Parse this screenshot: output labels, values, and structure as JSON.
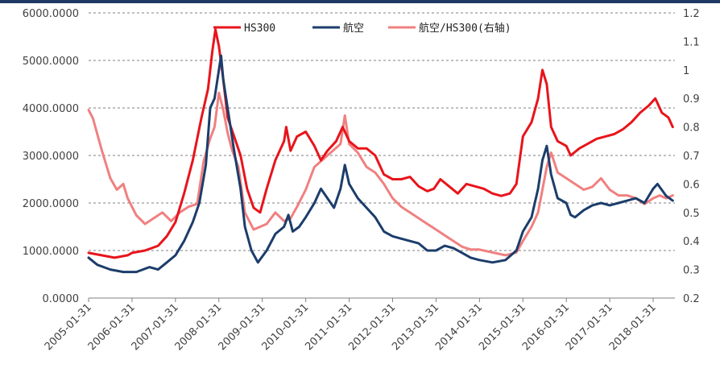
{
  "chart_data": {
    "type": "line",
    "title": "",
    "xlabel": "",
    "ylabel_left": "",
    "ylabel_right": "",
    "x_tick_labels": [
      "2005-01-31",
      "2006-01-31",
      "2007-01-31",
      "2008-01-31",
      "2009-01-31",
      "2010-01-31",
      "2011-01-31",
      "2012-01-31",
      "2013-01-31",
      "2014-01-31",
      "2015-01-31",
      "2016-01-31",
      "2017-01-31",
      "2018-01-31"
    ],
    "x_range": [
      2005.0,
      2018.5
    ],
    "y_left": {
      "range": [
        0,
        6000
      ],
      "ticks": [
        "0.0000",
        "1000.0000",
        "2000.0000",
        "3000.0000",
        "4000.0000",
        "5000.0000",
        "6000.0000"
      ]
    },
    "y_right": {
      "range": [
        0.2,
        1.2
      ],
      "ticks": [
        "0.2",
        "0.3",
        "0.4",
        "0.5",
        "0.6",
        "0.7",
        "0.8",
        "0.9",
        "1",
        "1.1",
        "1.2"
      ]
    },
    "grid": true,
    "legend_position": "top",
    "series": [
      {
        "name": "HS300",
        "axis": "left",
        "color": "#e8141b",
        "points": [
          [
            2005.0,
            950
          ],
          [
            2005.3,
            900
          ],
          [
            2005.6,
            850
          ],
          [
            2005.9,
            900
          ],
          [
            2006.0,
            950
          ],
          [
            2006.3,
            1000
          ],
          [
            2006.6,
            1100
          ],
          [
            2006.8,
            1300
          ],
          [
            2007.0,
            1600
          ],
          [
            2007.2,
            2200
          ],
          [
            2007.4,
            2900
          ],
          [
            2007.6,
            3800
          ],
          [
            2007.75,
            4400
          ],
          [
            2007.85,
            5200
          ],
          [
            2007.92,
            5650
          ],
          [
            2008.0,
            5300
          ],
          [
            2008.1,
            4600
          ],
          [
            2008.2,
            3800
          ],
          [
            2008.35,
            3400
          ],
          [
            2008.5,
            3000
          ],
          [
            2008.65,
            2300
          ],
          [
            2008.8,
            1900
          ],
          [
            2008.95,
            1800
          ],
          [
            2009.1,
            2300
          ],
          [
            2009.3,
            2900
          ],
          [
            2009.5,
            3300
          ],
          [
            2009.55,
            3600
          ],
          [
            2009.65,
            3100
          ],
          [
            2009.8,
            3400
          ],
          [
            2010.0,
            3500
          ],
          [
            2010.2,
            3200
          ],
          [
            2010.35,
            2900
          ],
          [
            2010.5,
            3100
          ],
          [
            2010.7,
            3300
          ],
          [
            2010.85,
            3600
          ],
          [
            2011.0,
            3300
          ],
          [
            2011.2,
            3150
          ],
          [
            2011.4,
            3150
          ],
          [
            2011.6,
            3000
          ],
          [
            2011.8,
            2600
          ],
          [
            2012.0,
            2500
          ],
          [
            2012.2,
            2500
          ],
          [
            2012.4,
            2550
          ],
          [
            2012.6,
            2350
          ],
          [
            2012.8,
            2250
          ],
          [
            2012.95,
            2300
          ],
          [
            2013.1,
            2500
          ],
          [
            2013.3,
            2350
          ],
          [
            2013.5,
            2200
          ],
          [
            2013.7,
            2400
          ],
          [
            2013.9,
            2350
          ],
          [
            2014.1,
            2300
          ],
          [
            2014.3,
            2200
          ],
          [
            2014.5,
            2150
          ],
          [
            2014.7,
            2200
          ],
          [
            2014.85,
            2400
          ],
          [
            2015.0,
            3400
          ],
          [
            2015.2,
            3700
          ],
          [
            2015.35,
            4200
          ],
          [
            2015.45,
            4800
          ],
          [
            2015.55,
            4500
          ],
          [
            2015.65,
            3600
          ],
          [
            2015.8,
            3300
          ],
          [
            2016.0,
            3200
          ],
          [
            2016.1,
            3000
          ],
          [
            2016.3,
            3150
          ],
          [
            2016.5,
            3250
          ],
          [
            2016.7,
            3350
          ],
          [
            2016.9,
            3400
          ],
          [
            2017.1,
            3450
          ],
          [
            2017.3,
            3550
          ],
          [
            2017.5,
            3700
          ],
          [
            2017.7,
            3900
          ],
          [
            2017.9,
            4050
          ],
          [
            2018.05,
            4200
          ],
          [
            2018.2,
            3900
          ],
          [
            2018.35,
            3800
          ],
          [
            2018.45,
            3600
          ]
        ]
      },
      {
        "name": "航空",
        "axis": "left",
        "color": "#1c3d6b",
        "points": [
          [
            2005.0,
            850
          ],
          [
            2005.2,
            700
          ],
          [
            2005.5,
            600
          ],
          [
            2005.8,
            550
          ],
          [
            2006.1,
            550
          ],
          [
            2006.4,
            650
          ],
          [
            2006.6,
            600
          ],
          [
            2006.8,
            750
          ],
          [
            2007.0,
            900
          ],
          [
            2007.2,
            1200
          ],
          [
            2007.4,
            1600
          ],
          [
            2007.55,
            2000
          ],
          [
            2007.7,
            2800
          ],
          [
            2007.8,
            4000
          ],
          [
            2007.9,
            4200
          ],
          [
            2008.0,
            4800
          ],
          [
            2008.05,
            5100
          ],
          [
            2008.1,
            4600
          ],
          [
            2008.2,
            4000
          ],
          [
            2008.35,
            3100
          ],
          [
            2008.5,
            2300
          ],
          [
            2008.6,
            1500
          ],
          [
            2008.75,
            1000
          ],
          [
            2008.9,
            750
          ],
          [
            2009.1,
            1000
          ],
          [
            2009.3,
            1350
          ],
          [
            2009.5,
            1500
          ],
          [
            2009.6,
            1750
          ],
          [
            2009.7,
            1400
          ],
          [
            2009.85,
            1500
          ],
          [
            2010.0,
            1700
          ],
          [
            2010.2,
            2000
          ],
          [
            2010.35,
            2300
          ],
          [
            2010.5,
            2100
          ],
          [
            2010.65,
            1900
          ],
          [
            2010.8,
            2300
          ],
          [
            2010.9,
            2800
          ],
          [
            2011.0,
            2400
          ],
          [
            2011.2,
            2100
          ],
          [
            2011.4,
            1900
          ],
          [
            2011.6,
            1700
          ],
          [
            2011.8,
            1400
          ],
          [
            2012.0,
            1300
          ],
          [
            2012.2,
            1250
          ],
          [
            2012.4,
            1200
          ],
          [
            2012.6,
            1150
          ],
          [
            2012.8,
            1000
          ],
          [
            2013.0,
            1000
          ],
          [
            2013.2,
            1100
          ],
          [
            2013.4,
            1050
          ],
          [
            2013.6,
            950
          ],
          [
            2013.8,
            850
          ],
          [
            2014.0,
            800
          ],
          [
            2014.3,
            750
          ],
          [
            2014.6,
            800
          ],
          [
            2014.85,
            1000
          ],
          [
            2015.0,
            1400
          ],
          [
            2015.2,
            1700
          ],
          [
            2015.35,
            2300
          ],
          [
            2015.45,
            2900
          ],
          [
            2015.55,
            3200
          ],
          [
            2015.65,
            2600
          ],
          [
            2015.8,
            2100
          ],
          [
            2016.0,
            2000
          ],
          [
            2016.1,
            1750
          ],
          [
            2016.2,
            1700
          ],
          [
            2016.4,
            1850
          ],
          [
            2016.6,
            1950
          ],
          [
            2016.8,
            2000
          ],
          [
            2017.0,
            1950
          ],
          [
            2017.2,
            2000
          ],
          [
            2017.4,
            2050
          ],
          [
            2017.6,
            2100
          ],
          [
            2017.8,
            2000
          ],
          [
            2018.0,
            2300
          ],
          [
            2018.1,
            2400
          ],
          [
            2018.3,
            2150
          ],
          [
            2018.45,
            2050
          ]
        ]
      },
      {
        "name": "航空/HS300(右轴)",
        "axis": "right",
        "color": "#f08080",
        "points": [
          [
            2005.0,
            0.86
          ],
          [
            2005.1,
            0.83
          ],
          [
            2005.3,
            0.72
          ],
          [
            2005.5,
            0.62
          ],
          [
            2005.65,
            0.58
          ],
          [
            2005.8,
            0.6
          ],
          [
            2005.9,
            0.55
          ],
          [
            2006.1,
            0.49
          ],
          [
            2006.3,
            0.46
          ],
          [
            2006.5,
            0.48
          ],
          [
            2006.7,
            0.5
          ],
          [
            2006.9,
            0.47
          ],
          [
            2007.1,
            0.5
          ],
          [
            2007.3,
            0.52
          ],
          [
            2007.5,
            0.53
          ],
          [
            2007.65,
            0.68
          ],
          [
            2007.8,
            0.76
          ],
          [
            2007.9,
            0.8
          ],
          [
            2008.0,
            0.92
          ],
          [
            2008.1,
            0.86
          ],
          [
            2008.2,
            0.78
          ],
          [
            2008.3,
            0.72
          ],
          [
            2008.45,
            0.66
          ],
          [
            2008.6,
            0.5
          ],
          [
            2008.8,
            0.44
          ],
          [
            2008.95,
            0.45
          ],
          [
            2009.1,
            0.46
          ],
          [
            2009.3,
            0.5
          ],
          [
            2009.5,
            0.47
          ],
          [
            2009.65,
            0.48
          ],
          [
            2009.8,
            0.52
          ],
          [
            2010.0,
            0.58
          ],
          [
            2010.2,
            0.66
          ],
          [
            2010.35,
            0.68
          ],
          [
            2010.5,
            0.7
          ],
          [
            2010.65,
            0.72
          ],
          [
            2010.8,
            0.74
          ],
          [
            2010.9,
            0.84
          ],
          [
            2011.0,
            0.74
          ],
          [
            2011.2,
            0.71
          ],
          [
            2011.4,
            0.66
          ],
          [
            2011.6,
            0.64
          ],
          [
            2011.8,
            0.6
          ],
          [
            2012.0,
            0.55
          ],
          [
            2012.2,
            0.52
          ],
          [
            2012.4,
            0.5
          ],
          [
            2012.6,
            0.48
          ],
          [
            2012.8,
            0.46
          ],
          [
            2013.0,
            0.44
          ],
          [
            2013.2,
            0.42
          ],
          [
            2013.4,
            0.4
          ],
          [
            2013.6,
            0.38
          ],
          [
            2013.8,
            0.37
          ],
          [
            2014.0,
            0.37
          ],
          [
            2014.3,
            0.36
          ],
          [
            2014.6,
            0.35
          ],
          [
            2014.85,
            0.36
          ],
          [
            2015.0,
            0.4
          ],
          [
            2015.2,
            0.45
          ],
          [
            2015.35,
            0.5
          ],
          [
            2015.45,
            0.58
          ],
          [
            2015.55,
            0.66
          ],
          [
            2015.65,
            0.71
          ],
          [
            2015.8,
            0.64
          ],
          [
            2016.0,
            0.62
          ],
          [
            2016.2,
            0.6
          ],
          [
            2016.4,
            0.58
          ],
          [
            2016.6,
            0.59
          ],
          [
            2016.8,
            0.62
          ],
          [
            2017.0,
            0.58
          ],
          [
            2017.2,
            0.56
          ],
          [
            2017.4,
            0.56
          ],
          [
            2017.6,
            0.55
          ],
          [
            2017.8,
            0.53
          ],
          [
            2018.0,
            0.55
          ],
          [
            2018.15,
            0.56
          ],
          [
            2018.3,
            0.55
          ],
          [
            2018.45,
            0.56
          ]
        ]
      }
    ],
    "legend": [
      {
        "label": "HS300",
        "color": "#e8141b"
      },
      {
        "label": "航空",
        "color": "#1c3d6b"
      },
      {
        "label": "航空/HS300(右轴)",
        "color": "#f08080"
      }
    ]
  }
}
